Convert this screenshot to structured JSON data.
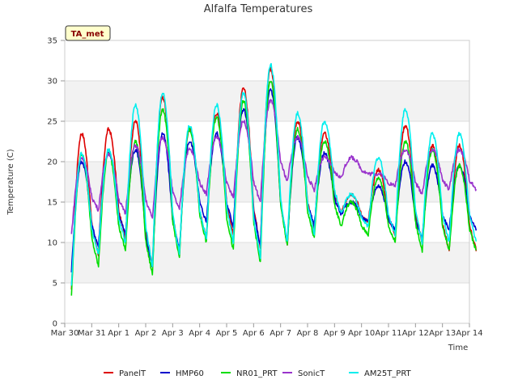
{
  "chart_data": {
    "type": "line",
    "title": "Alfalfa Temperatures",
    "xlabel": "Time",
    "ylabel": "Temperature (C)",
    "badge": "TA_met",
    "ylim": [
      0,
      35
    ],
    "yticks": [
      0,
      5,
      10,
      15,
      20,
      25,
      30,
      35
    ],
    "xlim": [
      "2023-03-30",
      "2023-04-14"
    ],
    "xtick_labels": [
      "Mar 30",
      "Mar 31",
      "Apr 1",
      "Apr 2",
      "Apr 3",
      "Apr 4",
      "Apr 5",
      "Apr 6",
      "Apr 7",
      "Apr 8",
      "Apr 9",
      "Apr 10",
      "Apr 11",
      "Apr 12",
      "Apr 13",
      "Apr 14"
    ],
    "grid": true,
    "legend_position": "bottom",
    "series_days": [
      "Mar 30",
      "Mar 31",
      "Apr 1",
      "Apr 2",
      "Apr 3",
      "Apr 4",
      "Apr 5",
      "Apr 6",
      "Apr 7",
      "Apr 8",
      "Apr 9",
      "Apr 10",
      "Apr 11",
      "Apr 12",
      "Apr 13"
    ],
    "series": [
      {
        "name": "PanelT",
        "color": "#dd0000",
        "daily_min": [
          4.0,
          8.5,
          10.5,
          7.0,
          8.5,
          10.5,
          11.0,
          9.5,
          9.5,
          11.5,
          13.5,
          12.5,
          11.0,
          10.0,
          9.0
        ],
        "daily_max": [
          23.5,
          24.0,
          25.0,
          28.0,
          24.0,
          26.0,
          29.0,
          31.5,
          25.0,
          23.5,
          16.0,
          19.0,
          24.5,
          22.0,
          22.0
        ]
      },
      {
        "name": "HMP60",
        "color": "#0000cc",
        "daily_min": [
          6.5,
          9.5,
          11.0,
          7.0,
          9.0,
          12.5,
          12.0,
          9.5,
          10.0,
          12.0,
          13.5,
          12.5,
          11.5,
          10.5,
          11.5
        ],
        "daily_max": [
          20.0,
          21.0,
          21.5,
          23.5,
          22.5,
          23.5,
          26.5,
          29.0,
          23.0,
          21.0,
          15.0,
          17.0,
          20.0,
          19.5,
          19.5
        ]
      },
      {
        "name": "NR01_PRT",
        "color": "#00dd00",
        "daily_min": [
          3.5,
          7.0,
          9.0,
          6.0,
          8.0,
          10.0,
          9.0,
          7.5,
          9.5,
          10.5,
          12.0,
          11.0,
          10.0,
          9.0,
          9.0
        ],
        "daily_max": [
          21.0,
          21.0,
          22.5,
          26.5,
          24.0,
          25.5,
          27.5,
          30.0,
          24.0,
          22.5,
          15.0,
          18.0,
          22.5,
          21.5,
          19.5
        ]
      },
      {
        "name": "SonicT",
        "color": "#9933cc",
        "daily_min": [
          11.0,
          14.0,
          13.5,
          13.0,
          14.0,
          16.0,
          15.5,
          15.0,
          17.5,
          16.5,
          18.0,
          18.5,
          17.0,
          16.0,
          16.5
        ],
        "daily_max": [
          20.5,
          21.0,
          22.0,
          23.0,
          21.5,
          23.0,
          25.0,
          27.5,
          23.0,
          20.5,
          20.5,
          18.5,
          21.5,
          21.5,
          21.5
        ]
      },
      {
        "name": "AM25T_PRT",
        "color": "#00eeee",
        "daily_min": [
          4.5,
          8.5,
          10.0,
          7.0,
          8.5,
          10.5,
          10.0,
          8.0,
          10.0,
          11.0,
          13.5,
          12.0,
          11.0,
          10.0,
          10.0
        ],
        "daily_max": [
          21.0,
          21.5,
          27.0,
          28.5,
          24.5,
          27.0,
          28.5,
          32.0,
          26.0,
          25.0,
          16.0,
          20.5,
          26.5,
          23.5,
          23.5
        ]
      }
    ]
  }
}
